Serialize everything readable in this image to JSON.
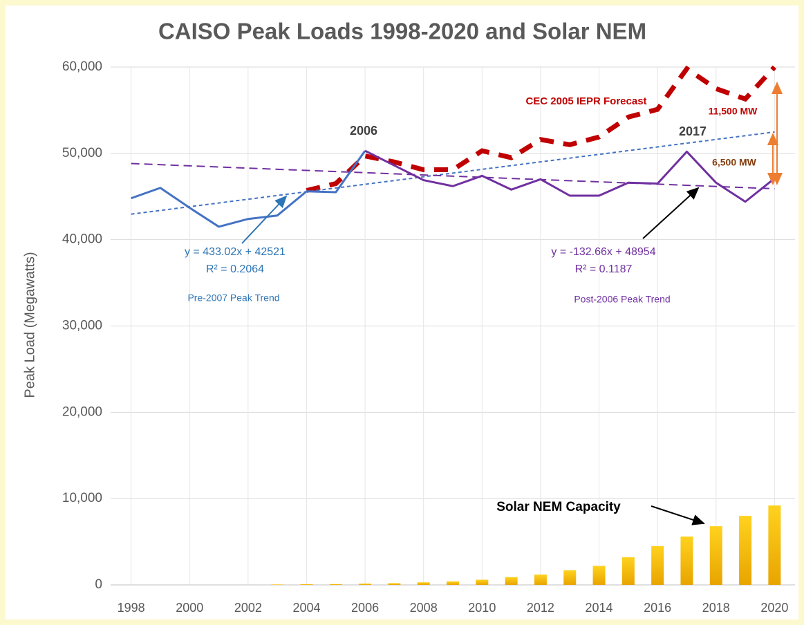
{
  "chart_data": {
    "type": "line",
    "title": "CAISO Peak Loads 1998-2020 and Solar NEM",
    "y_label": "Peak Load (Megawatts)",
    "x": [
      1998,
      1999,
      2000,
      2001,
      2002,
      2003,
      2004,
      2005,
      2006,
      2007,
      2008,
      2009,
      2010,
      2011,
      2012,
      2013,
      2014,
      2015,
      2016,
      2017,
      2018,
      2019,
      2020
    ],
    "xlim": [
      1997.3,
      2020.7
    ],
    "xticks": [
      1998,
      2000,
      2002,
      2004,
      2006,
      2008,
      2010,
      2012,
      2014,
      2016,
      2018,
      2020
    ],
    "ylim": [
      0,
      60000
    ],
    "yticks": [
      {
        "value": 0,
        "label": "0"
      },
      {
        "value": 10000,
        "label": "10,000"
      },
      {
        "value": 20000,
        "label": "20,000"
      },
      {
        "value": 30000,
        "label": "30,000"
      },
      {
        "value": 40000,
        "label": "40,000"
      },
      {
        "value": 50000,
        "label": "50,000"
      },
      {
        "value": 60000,
        "label": "60,000"
      }
    ],
    "grid": true,
    "series": [
      {
        "name": "Solar NEM Capacity",
        "kind": "bar",
        "color": "#f5b800",
        "values": [
          0,
          0,
          0,
          0,
          0,
          50,
          80,
          100,
          150,
          200,
          300,
          400,
          600,
          900,
          1200,
          1700,
          2200,
          3200,
          4500,
          5600,
          6800,
          8000,
          9200
        ]
      },
      {
        "name": "CEC 2005 IEPR Forecast",
        "kind": "line",
        "color": "#c00000",
        "dashed": true,
        "values": [
          null,
          null,
          null,
          null,
          null,
          null,
          45700,
          46500,
          49700,
          49000,
          48100,
          48100,
          50300,
          49500,
          51600,
          51000,
          51900,
          54200,
          55100,
          59800,
          57500,
          56300,
          60000
        ]
      },
      {
        "name": "Pre-2007 Peak Trend",
        "kind": "trend",
        "color": "#4472c4",
        "x": [
          1998,
          2020
        ],
        "values": [
          42954,
          52480
        ],
        "equation": "y = 433.02x + 42521",
        "r2": "R² = 0.2064"
      },
      {
        "name": "Post-2006 Peak Trend",
        "kind": "trend",
        "color": "#7030a0",
        "x": [
          1998,
          2020
        ],
        "values": [
          48821,
          45903
        ],
        "equation": "y = -132.66x + 48954",
        "r2": "R² = 0.1187"
      },
      {
        "kind": "line",
        "color": "#4472c4",
        "values": [
          44800,
          46000,
          43700,
          41500,
          42400,
          42800,
          45600,
          45500,
          50300,
          null,
          null,
          null,
          null,
          null,
          null,
          null,
          null,
          null,
          null,
          null,
          null,
          null,
          null
        ]
      },
      {
        "kind": "line",
        "color": "#7030a0",
        "values": [
          null,
          null,
          null,
          null,
          null,
          null,
          null,
          null,
          50300,
          48600,
          46900,
          46200,
          47400,
          45800,
          47000,
          45100,
          45100,
          46600,
          46500,
          50200,
          46600,
          44400,
          47100
        ]
      }
    ],
    "annotations": [
      "2006",
      "2017",
      "11,500 MW",
      "6,500 MW"
    ]
  }
}
